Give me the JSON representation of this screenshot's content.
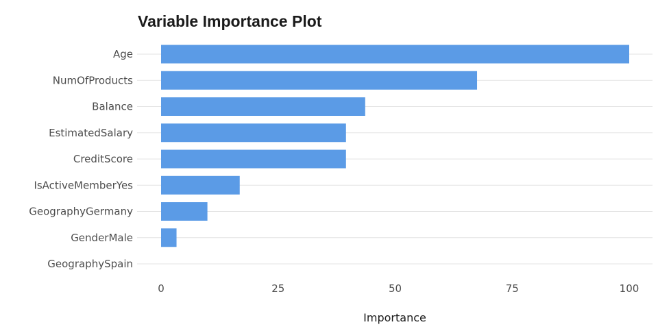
{
  "chart_data": {
    "type": "bar",
    "orientation": "horizontal",
    "title": "Variable Importance Plot",
    "xlabel": "Importance",
    "ylabel": "",
    "categories": [
      "Age",
      "NumOfProducts",
      "Balance",
      "EstimatedSalary",
      "CreditScore",
      "IsActiveMemberYes",
      "GeographyGermany",
      "GenderMale",
      "GeographySpain"
    ],
    "values": [
      100,
      67.5,
      43.6,
      39.5,
      39.5,
      16.8,
      9.9,
      3.3,
      0
    ],
    "xlim": [
      0,
      100
    ],
    "xticks": [
      "0",
      "25",
      "50",
      "75",
      "100"
    ],
    "bar_color": "#5B9BE6",
    "grid": true,
    "legend": "none"
  }
}
